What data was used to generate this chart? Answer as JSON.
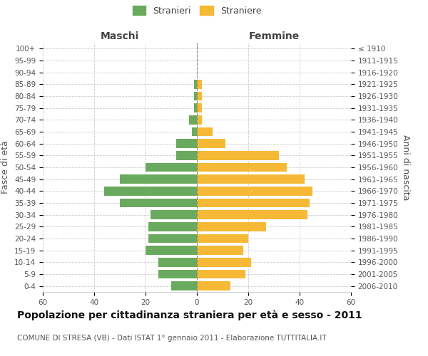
{
  "age_groups": [
    "0-4",
    "5-9",
    "10-14",
    "15-19",
    "20-24",
    "25-29",
    "30-34",
    "35-39",
    "40-44",
    "45-49",
    "50-54",
    "55-59",
    "60-64",
    "65-69",
    "70-74",
    "75-79",
    "80-84",
    "85-89",
    "90-94",
    "95-99",
    "100+"
  ],
  "birth_years": [
    "2006-2010",
    "2001-2005",
    "1996-2000",
    "1991-1995",
    "1986-1990",
    "1981-1985",
    "1976-1980",
    "1971-1975",
    "1966-1970",
    "1961-1965",
    "1956-1960",
    "1951-1955",
    "1946-1950",
    "1941-1945",
    "1936-1940",
    "1931-1935",
    "1926-1930",
    "1921-1925",
    "1916-1920",
    "1911-1915",
    "≤ 1910"
  ],
  "males": [
    10,
    15,
    15,
    20,
    19,
    19,
    18,
    30,
    36,
    30,
    20,
    8,
    8,
    2,
    3,
    1,
    1,
    1,
    0,
    0,
    0
  ],
  "females": [
    13,
    19,
    21,
    18,
    20,
    27,
    43,
    44,
    45,
    42,
    35,
    32,
    11,
    6,
    2,
    2,
    2,
    2,
    0,
    0,
    0
  ],
  "male_color": "#6aaa5e",
  "female_color": "#f5b935",
  "background_color": "#ffffff",
  "grid_color": "#cccccc",
  "bar_height": 0.75,
  "xlim": 60,
  "title": "Popolazione per cittadinanza straniera per età e sesso - 2011",
  "subtitle": "COMUNE DI STRESA (VB) - Dati ISTAT 1° gennaio 2011 - Elaborazione TUTTITALIA.IT",
  "left_label": "Maschi",
  "right_label": "Femmine",
  "ylabel_left": "Fasce di età",
  "ylabel_right": "Anni di nascita",
  "legend_male": "Stranieri",
  "legend_female": "Straniere",
  "title_fontsize": 10,
  "subtitle_fontsize": 7.5,
  "label_fontsize": 9,
  "tick_fontsize": 7.5
}
